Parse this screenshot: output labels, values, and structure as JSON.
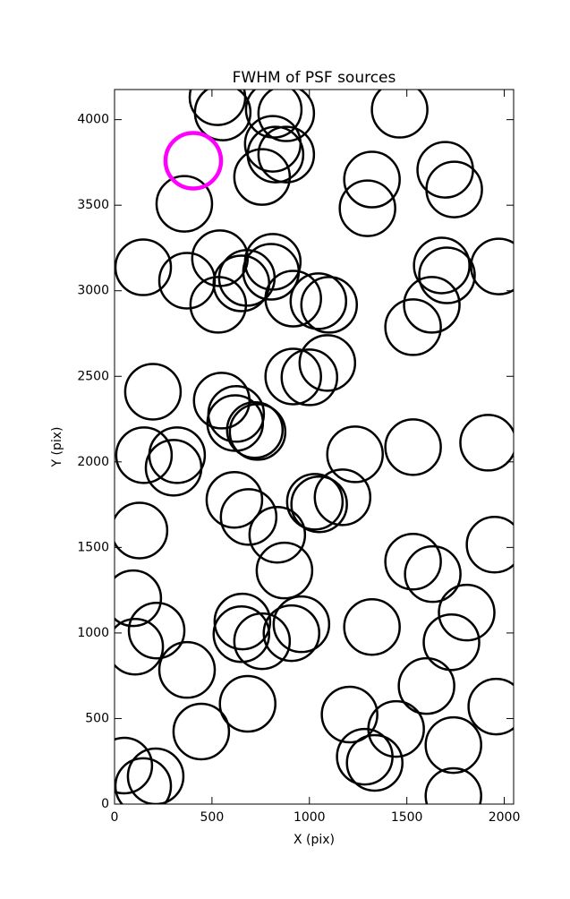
{
  "chart_data": {
    "type": "scatter",
    "title": "FWHM of PSF sources",
    "xlabel": "X (pix)",
    "ylabel": "Y (pix)",
    "xlim": [
      0,
      2048
    ],
    "ylim": [
      0,
      4176
    ],
    "xticks": [
      0,
      500,
      1000,
      1500,
      2000
    ],
    "yticks": [
      0,
      500,
      1000,
      1500,
      2000,
      2500,
      3000,
      3500,
      4000
    ],
    "series": [
      {
        "color": "#000000",
        "x": [
          528,
          555,
          817,
          881,
          1463,
          812,
          826,
          881,
          757,
          358,
          1321,
          1298,
          1697,
          1743,
          147,
          372,
          541,
          532,
          679,
          651,
          812,
          803,
          917,
          1046,
          1101,
          1679,
          1706,
          1628,
          1532,
          1972,
          197,
          1092,
          917,
          1000,
          550,
          624,
          619,
          720,
          734,
          151,
          321,
          303,
          1234,
          1532,
          1917,
          615,
          688,
          1028,
          1050,
          1170,
          128,
          835,
          872,
          1950,
          96,
          1532,
          1633,
          1807,
          1729,
          216,
          106,
          656,
          651,
          757,
          959,
          908,
          1321,
          372,
          1601,
          683,
          445,
          1206,
          1445,
          1959,
          1739,
          50,
          1284,
          1335,
          147,
          211,
          1739
        ],
        "values": [
          4131,
          4042,
          4058,
          4037,
          4058,
          3859,
          3796,
          3796,
          3665,
          3508,
          3650,
          3482,
          3707,
          3592,
          3137,
          3059,
          3190,
          2918,
          3075,
          3043,
          3169,
          3111,
          2954,
          2939,
          2918,
          3148,
          3090,
          2918,
          2787,
          3142,
          2410,
          2578,
          2499,
          2494,
          2358,
          2280,
          2227,
          2186,
          2175,
          2039,
          2039,
          1966,
          2044,
          2086,
          2112,
          1778,
          1678,
          1767,
          1752,
          1793,
          1599,
          1574,
          1365,
          1516,
          1203,
          1417,
          1344,
          1119,
          946,
          1014,
          920,
          1067,
          993,
          952,
          1051,
          999,
          1035,
          784,
          690,
          586,
          424,
          523,
          439,
          570,
          345,
          225,
          277,
          241,
          105,
          162,
          47
        ]
      },
      {
        "color": "#ff00ff",
        "x": [
          404
        ],
        "values": [
          3760
        ]
      }
    ]
  }
}
